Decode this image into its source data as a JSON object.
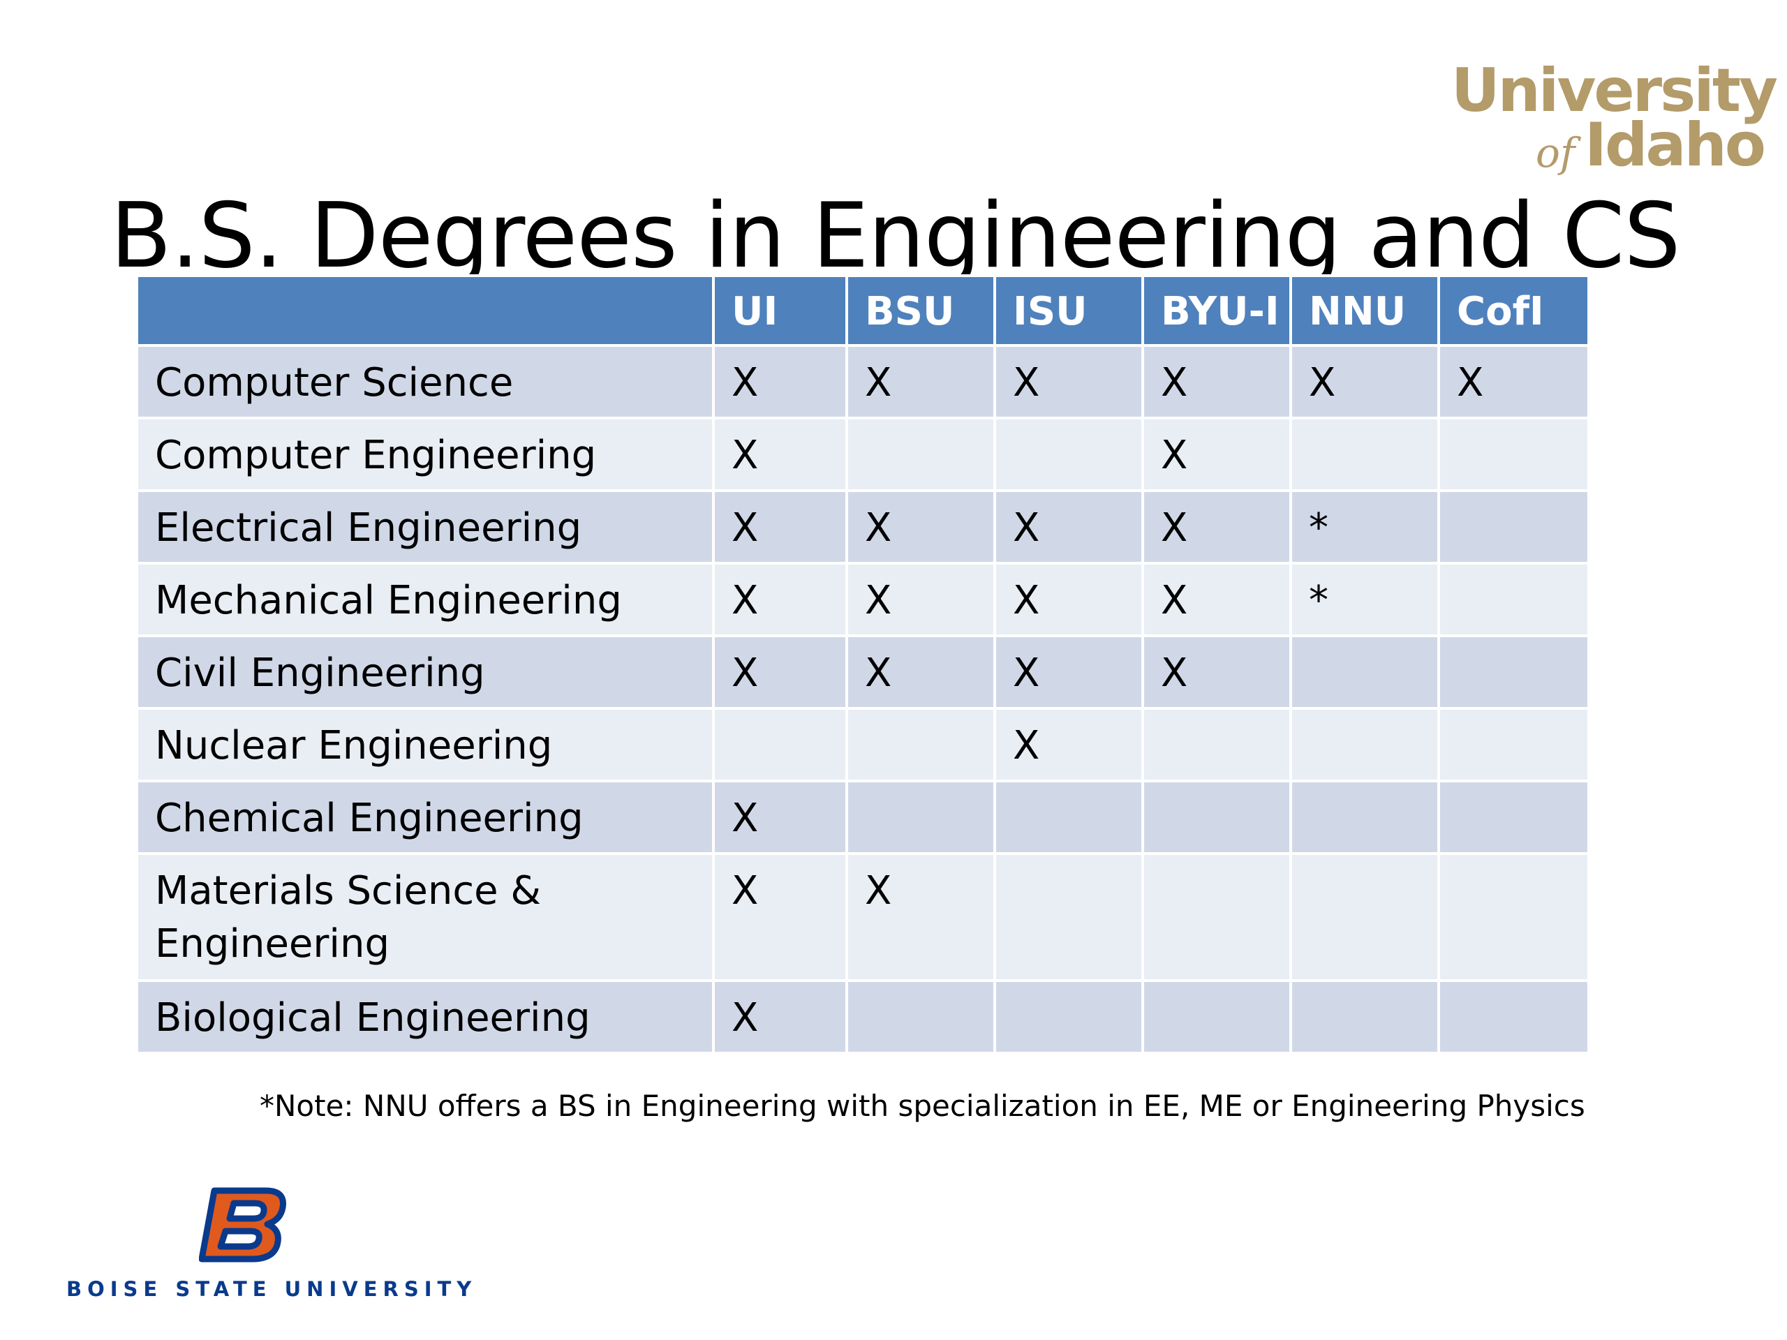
{
  "slide": {
    "title": "B.S. Degrees in Engineering and CS",
    "logo_top_right": {
      "line1": "University",
      "of": "of",
      "line2": "Idaho",
      "color": "#b39b6a"
    },
    "table": {
      "header_color": "#4f81bd",
      "row_odd_color": "#d0d8e8",
      "row_even_color": "#e9edf4",
      "columns": [
        "",
        "UI",
        "BSU",
        "ISU",
        "BYU-I",
        "NNU",
        "CofI"
      ],
      "rows": [
        {
          "degree": "Computer Science",
          "cells": [
            "X",
            "X",
            "X",
            "X",
            "X",
            "X"
          ]
        },
        {
          "degree": "Computer Engineering",
          "cells": [
            "X",
            "",
            "",
            "X",
            "",
            ""
          ]
        },
        {
          "degree": "Electrical Engineering",
          "cells": [
            "X",
            "X",
            "X",
            "X",
            "*",
            ""
          ]
        },
        {
          "degree": "Mechanical Engineering",
          "cells": [
            "X",
            "X",
            "X",
            "X",
            "*",
            ""
          ]
        },
        {
          "degree": "Civil Engineering",
          "cells": [
            "X",
            "X",
            "X",
            "X",
            "",
            ""
          ]
        },
        {
          "degree": "Nuclear Engineering",
          "cells": [
            "",
            "",
            "X",
            "",
            "",
            ""
          ]
        },
        {
          "degree": "Chemical Engineering",
          "cells": [
            "X",
            "",
            "",
            "",
            "",
            ""
          ]
        },
        {
          "degree": "Materials Science & Engineering",
          "cells": [
            "X",
            "X",
            "",
            "",
            "",
            ""
          ]
        },
        {
          "degree": "Biological Engineering",
          "cells": [
            "X",
            "",
            "",
            "",
            "",
            ""
          ]
        }
      ]
    },
    "note": "*Note:  NNU offers a BS in Engineering with specialization in EE, ME or Engineering Physics",
    "logo_bottom_left": {
      "icon": "boise-state-b-icon",
      "text": "BOISE STATE UNIVERSITY",
      "blue": "#0a3a8c",
      "orange": "#e05a1e"
    }
  }
}
